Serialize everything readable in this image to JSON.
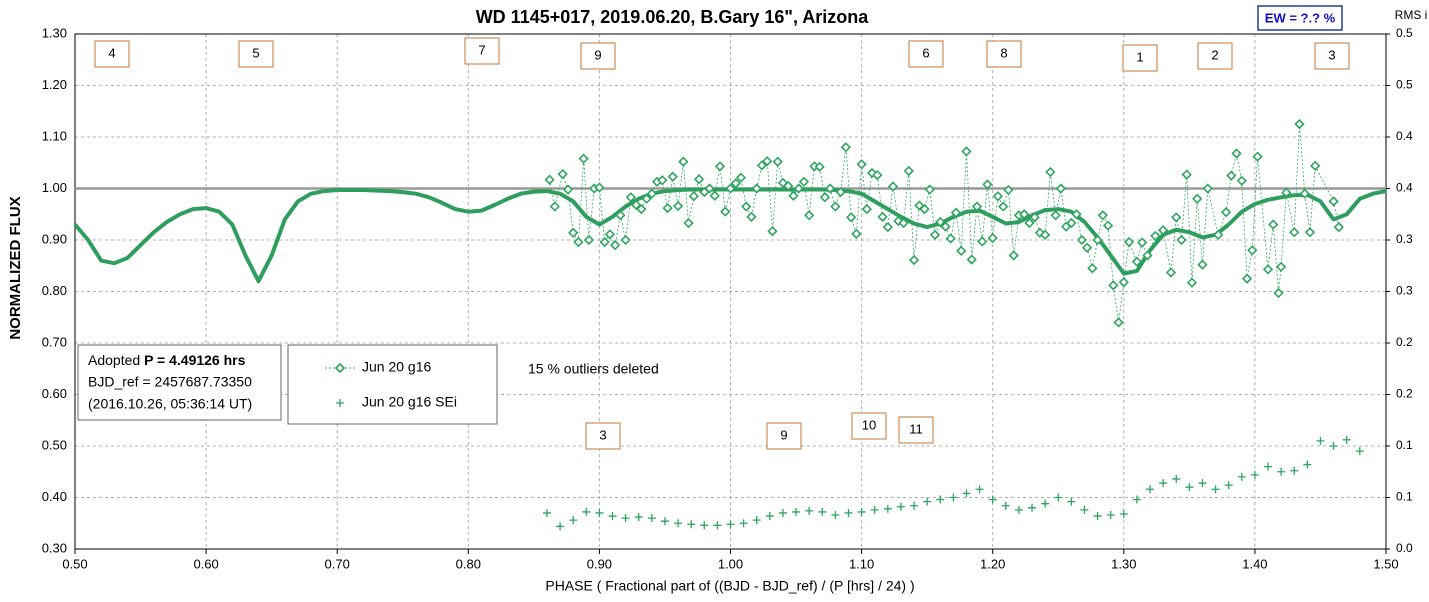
{
  "chart_data": {
    "type": "scatter",
    "title": "WD 1145+017, 2019.06.20, B.Gary 16\", Arizona",
    "xlabel": "PHASE ( Fractional part of ((BJD - BJD_ref) / (P [hrs] / 24) )",
    "ylabel": "NORMALIZED FLUX",
    "y2label": "RMS i",
    "ew_label": "EW = ?.? %",
    "outlier_note": "15 % outliers deleted",
    "info": {
      "prefix": "Adopted ",
      "period": "P = 4.49126 hrs",
      "ref": "BJD_ref = 2457687.73350",
      "date": "(2016.10.26, 05:36:14 UT)"
    },
    "dip_labels": [
      "4",
      "5",
      "7",
      "9",
      "6",
      "8",
      "1",
      "2",
      "3",
      "3",
      "9",
      "10",
      "11"
    ],
    "xlim": [
      0.5,
      1.5
    ],
    "ylim": [
      0.3,
      1.3
    ],
    "y2lim": [
      0,
      0.5
    ],
    "xticks": [
      {
        "value": 0.5,
        "label": "0.50"
      },
      {
        "value": 0.6,
        "label": "0.60"
      },
      {
        "value": 0.7,
        "label": "0.70"
      },
      {
        "value": 0.8,
        "label": "0.80"
      },
      {
        "value": 0.9,
        "label": "0.90"
      },
      {
        "value": 1.0,
        "label": "1.00"
      },
      {
        "value": 1.1,
        "label": "1.10"
      },
      {
        "value": 1.2,
        "label": "1.20"
      },
      {
        "value": 1.3,
        "label": "1.30"
      },
      {
        "value": 1.4,
        "label": "1.40"
      },
      {
        "value": 1.5,
        "label": "1.50"
      }
    ],
    "yticks": [
      {
        "value": 0.3,
        "label": "0.30"
      },
      {
        "value": 0.4,
        "label": "0.40"
      },
      {
        "value": 0.5,
        "label": "0.50"
      },
      {
        "value": 0.6,
        "label": "0.60"
      },
      {
        "value": 0.7,
        "label": "0.70"
      },
      {
        "value": 0.8,
        "label": "0.80"
      },
      {
        "value": 0.9,
        "label": "0.90"
      },
      {
        "value": 1.0,
        "label": "1.00"
      },
      {
        "value": 1.1,
        "label": "1.10"
      },
      {
        "value": 1.2,
        "label": "1.20"
      },
      {
        "value": 1.3,
        "label": "1.30"
      }
    ],
    "y2ticks": [
      {
        "value": 0,
        "label": "0.0"
      },
      {
        "value": 0.05,
        "label": "0.1"
      },
      {
        "value": 0.1,
        "label": "0.1"
      },
      {
        "value": 0.15,
        "label": "0.2"
      },
      {
        "value": 0.2,
        "label": "0.2"
      },
      {
        "value": 0.25,
        "label": "0.3"
      },
      {
        "value": 0.3,
        "label": "0.3"
      },
      {
        "value": 0.35,
        "label": "0.4"
      },
      {
        "value": 0.4,
        "label": "0.4"
      },
      {
        "value": 0.45,
        "label": "0.5"
      },
      {
        "value": 0.5,
        "label": "0.5"
      }
    ],
    "grid": true,
    "reference_line": 1,
    "model": {
      "color": "#2e9e5e",
      "x": [
        0.5,
        0.51,
        0.52,
        0.53,
        0.54,
        0.55,
        0.56,
        0.57,
        0.58,
        0.59,
        0.6,
        0.61,
        0.62,
        0.63,
        0.64,
        0.65,
        0.66,
        0.67,
        0.68,
        0.69,
        0.7,
        0.71,
        0.72,
        0.73,
        0.74,
        0.75,
        0.76,
        0.77,
        0.78,
        0.79,
        0.8,
        0.81,
        0.82,
        0.83,
        0.84,
        0.85,
        0.86,
        0.87,
        0.88,
        0.89,
        0.9,
        0.91,
        0.92,
        0.93,
        0.94,
        0.95,
        0.96,
        0.97,
        0.98,
        0.99,
        1.0,
        1.01,
        1.02,
        1.03,
        1.04,
        1.05,
        1.06,
        1.07,
        1.08,
        1.09,
        1.1,
        1.11,
        1.12,
        1.13,
        1.14,
        1.15,
        1.16,
        1.17,
        1.18,
        1.19,
        1.2,
        1.21,
        1.22,
        1.23,
        1.24,
        1.25,
        1.26,
        1.27,
        1.28,
        1.29,
        1.3,
        1.31,
        1.32,
        1.33,
        1.34,
        1.35,
        1.36,
        1.37,
        1.38,
        1.39,
        1.4,
        1.41,
        1.42,
        1.43,
        1.44,
        1.45,
        1.46,
        1.47,
        1.48,
        1.49,
        1.5
      ],
      "values": [
        0.93,
        0.9,
        0.86,
        0.855,
        0.865,
        0.89,
        0.915,
        0.935,
        0.95,
        0.96,
        0.962,
        0.955,
        0.93,
        0.87,
        0.82,
        0.87,
        0.94,
        0.975,
        0.99,
        0.995,
        0.997,
        0.997,
        0.997,
        0.996,
        0.995,
        0.993,
        0.99,
        0.983,
        0.972,
        0.96,
        0.955,
        0.957,
        0.968,
        0.98,
        0.99,
        0.994,
        0.995,
        0.99,
        0.975,
        0.945,
        0.93,
        0.945,
        0.965,
        0.98,
        0.99,
        0.995,
        0.997,
        0.998,
        0.998,
        0.998,
        0.998,
        0.998,
        0.998,
        0.998,
        0.998,
        0.998,
        0.998,
        0.998,
        0.997,
        0.995,
        0.99,
        0.975,
        0.96,
        0.945,
        0.932,
        0.925,
        0.932,
        0.945,
        0.955,
        0.957,
        0.945,
        0.932,
        0.935,
        0.948,
        0.958,
        0.96,
        0.955,
        0.935,
        0.905,
        0.87,
        0.835,
        0.84,
        0.88,
        0.91,
        0.92,
        0.915,
        0.905,
        0.91,
        0.93,
        0.955,
        0.97,
        0.978,
        0.983,
        0.987,
        0.988,
        0.975,
        0.94,
        0.95,
        0.98,
        0.99,
        0.995
      ]
    },
    "series": [
      {
        "name": "Jun 20 g16",
        "color": "#2ea55f",
        "x": [
          0.862,
          0.866,
          0.872,
          0.876,
          0.88,
          0.884,
          0.888,
          0.892,
          0.896,
          0.9,
          0.904,
          0.908,
          0.912,
          0.916,
          0.92,
          0.924,
          0.928,
          0.932,
          0.936,
          0.94,
          0.944,
          0.948,
          0.952,
          0.956,
          0.96,
          0.964,
          0.968,
          0.972,
          0.976,
          0.98,
          0.984,
          0.988,
          0.992,
          0.996,
          1.0,
          1.004,
          1.008,
          1.012,
          1.016,
          1.02,
          1.024,
          1.028,
          1.032,
          1.036,
          1.04,
          1.044,
          1.048,
          1.052,
          1.056,
          1.06,
          1.064,
          1.068,
          1.072,
          1.076,
          1.08,
          1.084,
          1.088,
          1.092,
          1.096,
          1.1,
          1.104,
          1.108,
          1.112,
          1.116,
          1.12,
          1.124,
          1.128,
          1.132,
          1.136,
          1.14,
          1.144,
          1.148,
          1.152,
          1.156,
          1.16,
          1.164,
          1.168,
          1.172,
          1.176,
          1.18,
          1.184,
          1.188,
          1.192,
          1.196,
          1.2,
          1.204,
          1.208,
          1.212,
          1.216,
          1.22,
          1.224,
          1.228,
          1.232,
          1.236,
          1.24,
          1.244,
          1.248,
          1.252,
          1.256,
          1.26,
          1.264,
          1.268,
          1.272,
          1.276,
          1.28,
          1.284,
          1.288,
          1.292,
          1.296,
          1.3,
          1.304,
          1.31,
          1.314,
          1.318,
          1.324,
          1.33,
          1.336,
          1.34,
          1.344,
          1.348,
          1.352,
          1.356,
          1.36,
          1.364,
          1.372,
          1.378,
          1.382,
          1.386,
          1.39,
          1.394,
          1.398,
          1.402,
          1.41,
          1.414,
          1.418,
          1.42,
          1.424,
          1.43,
          1.434,
          1.438,
          1.442,
          1.446,
          1.46,
          1.464
        ],
        "values": [
          1.017,
          0.965,
          1.028,
          0.998,
          0.914,
          0.896,
          1.058,
          0.9,
          1.0,
          1.002,
          0.896,
          0.911,
          0.89,
          0.948,
          0.9,
          0.983,
          0.968,
          0.96,
          0.98,
          0.99,
          1.013,
          1.016,
          0.962,
          1.023,
          0.966,
          1.052,
          0.933,
          0.985,
          1.018,
          0.993,
          1.0,
          0.986,
          1.043,
          0.955,
          1.0,
          1.01,
          1.021,
          0.965,
          0.945,
          1.0,
          1.045,
          1.053,
          0.917,
          1.052,
          1.011,
          1.005,
          0.986,
          1.0,
          1.013,
          0.948,
          1.043,
          1.042,
          0.983,
          1.0,
          0.965,
          0.993,
          1.08,
          0.944,
          0.912,
          1.047,
          0.96,
          1.03,
          1.026,
          0.945,
          0.925,
          1.004,
          0.937,
          0.933,
          1.034,
          0.861,
          0.967,
          0.96,
          0.998,
          0.91,
          0.935,
          0.926,
          0.903,
          0.953,
          0.879,
          1.072,
          0.862,
          0.965,
          0.897,
          1.008,
          0.904,
          0.985,
          0.965,
          0.997,
          0.87,
          0.948,
          0.95,
          0.933,
          0.944,
          0.914,
          0.91,
          1.032,
          0.948,
          1.0,
          0.926,
          0.933,
          0.95,
          0.9,
          0.885,
          0.845,
          0.9,
          0.948,
          0.928,
          0.812,
          0.74,
          0.818,
          0.896,
          0.858,
          0.895,
          0.87,
          0.908,
          0.919,
          0.837,
          0.944,
          0.9,
          1.027,
          0.817,
          0.98,
          0.852,
          1.0,
          0.91,
          0.954,
          1.025,
          1.068,
          1.015,
          0.825,
          0.88,
          1.062,
          0.843,
          0.93,
          0.797,
          0.848,
          0.992,
          0.915,
          1.125,
          0.99,
          0.915,
          1.044,
          0.975,
          0.925
        ]
      },
      {
        "name": "Jun 20 g16 SEi",
        "color": "#2ea55f",
        "axis": "y2",
        "x": [
          0.86,
          0.87,
          0.88,
          0.89,
          0.9,
          0.91,
          0.92,
          0.93,
          0.94,
          0.95,
          0.96,
          0.97,
          0.98,
          0.99,
          1.0,
          1.01,
          1.02,
          1.03,
          1.04,
          1.05,
          1.06,
          1.07,
          1.08,
          1.09,
          1.1,
          1.11,
          1.12,
          1.13,
          1.14,
          1.15,
          1.16,
          1.17,
          1.18,
          1.19,
          1.2,
          1.21,
          1.22,
          1.23,
          1.24,
          1.25,
          1.26,
          1.27,
          1.28,
          1.29,
          1.3,
          1.31,
          1.32,
          1.33,
          1.34,
          1.35,
          1.36,
          1.37,
          1.38,
          1.39,
          1.4,
          1.41,
          1.42,
          1.43,
          1.44,
          1.45,
          1.46,
          1.47,
          1.48
        ],
        "values": [
          0.035,
          0.022,
          0.028,
          0.036,
          0.035,
          0.032,
          0.03,
          0.031,
          0.03,
          0.027,
          0.025,
          0.024,
          0.023,
          0.023,
          0.024,
          0.025,
          0.028,
          0.032,
          0.035,
          0.036,
          0.037,
          0.036,
          0.033,
          0.035,
          0.036,
          0.038,
          0.039,
          0.041,
          0.042,
          0.046,
          0.048,
          0.05,
          0.054,
          0.058,
          0.048,
          0.042,
          0.038,
          0.04,
          0.044,
          0.05,
          0.046,
          0.038,
          0.032,
          0.033,
          0.034,
          0.048,
          0.058,
          0.064,
          0.068,
          0.06,
          0.064,
          0.058,
          0.062,
          0.07,
          0.072,
          0.08,
          0.075,
          0.076,
          0.082,
          0.105,
          0.1,
          0.106,
          0.095
        ]
      }
    ]
  }
}
